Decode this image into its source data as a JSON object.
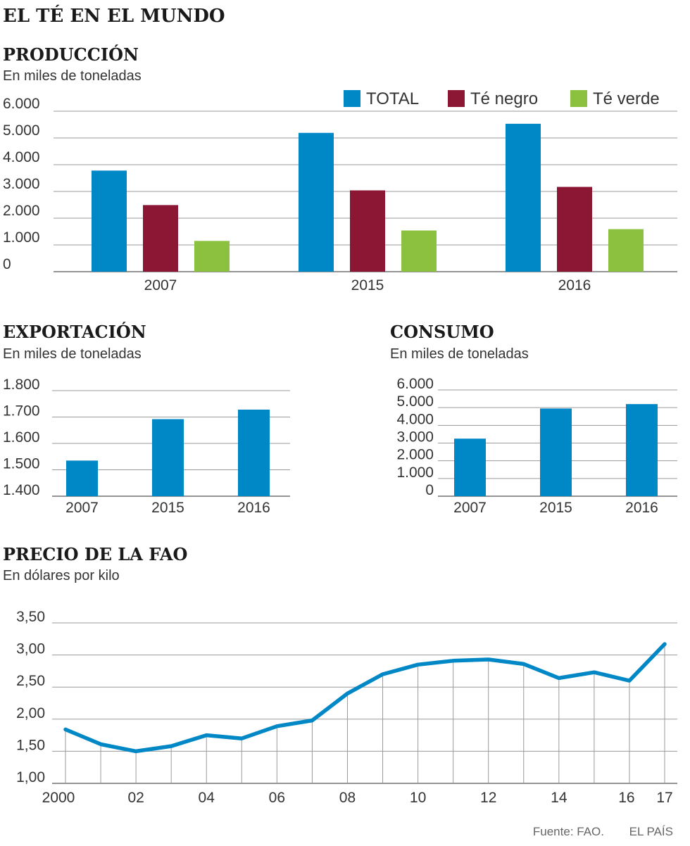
{
  "page_title": "EL TÉ EN EL MUNDO",
  "colors": {
    "total": "#0087c6",
    "negro": "#8b1734",
    "verde": "#8cc13f",
    "line": "#0087c6"
  },
  "chart_data": [
    {
      "type": "bar",
      "title": "PRODUCCIÓN",
      "subtitle": "En miles de toneladas",
      "categories": [
        "2007",
        "2015",
        "2016"
      ],
      "series": [
        {
          "name": "TOTAL",
          "values": [
            3780,
            5190,
            5530
          ]
        },
        {
          "name": "Té negro",
          "values": [
            2490,
            3040,
            3170
          ]
        },
        {
          "name": "Té verde",
          "values": [
            1150,
            1540,
            1590
          ]
        }
      ],
      "ylim": [
        0,
        6000
      ],
      "yticks": [
        0,
        1000,
        2000,
        3000,
        4000,
        5000,
        6000
      ],
      "ytick_labels": [
        "0",
        "1.000",
        "2.000",
        "3.000",
        "4.000",
        "5.000",
        "6.000"
      ],
      "legend_position": "top-right"
    },
    {
      "type": "bar",
      "title": "EXPORTACIÓN",
      "subtitle": "En miles de toneladas",
      "categories": [
        "2007",
        "2015",
        "2016"
      ],
      "values": [
        1535,
        1692,
        1728
      ],
      "ylim": [
        1400,
        1800
      ],
      "yticks": [
        1400,
        1500,
        1600,
        1700,
        1800
      ],
      "ytick_labels": [
        "1.400",
        "1.500",
        "1.600",
        "1.700",
        "1.800"
      ]
    },
    {
      "type": "bar",
      "title": "CONSUMO",
      "subtitle": "En miles de toneladas",
      "categories": [
        "2007",
        "2015",
        "2016"
      ],
      "values": [
        3250,
        4950,
        5200
      ],
      "ylim": [
        0,
        6000
      ],
      "yticks": [
        0,
        1000,
        2000,
        3000,
        4000,
        5000,
        6000
      ],
      "ytick_labels": [
        "0",
        "1.000",
        "2.000",
        "3.000",
        "4.000",
        "5.000",
        "6.000"
      ]
    },
    {
      "type": "line",
      "title": "PRECIO DE LA FAO",
      "subtitle": "En dólares por kilo",
      "x": [
        2000,
        2001,
        2002,
        2003,
        2004,
        2005,
        2006,
        2007,
        2008,
        2009,
        2010,
        2011,
        2012,
        2013,
        2014,
        2015,
        2016,
        2017
      ],
      "values": [
        1.84,
        1.61,
        1.5,
        1.58,
        1.75,
        1.7,
        1.89,
        1.98,
        2.4,
        2.7,
        2.85,
        2.91,
        2.93,
        2.86,
        2.64,
        2.73,
        2.6,
        3.17
      ],
      "ylim": [
        1.0,
        3.5
      ],
      "yticks": [
        1.0,
        1.5,
        2.0,
        2.5,
        3.0,
        3.5
      ],
      "ytick_labels": [
        "1,00",
        "1,50",
        "2,00",
        "2,50",
        "3,00",
        "3,50"
      ],
      "xtick_labels": [
        "2000",
        "02",
        "04",
        "06",
        "08",
        "10",
        "12",
        "14",
        "16",
        "17"
      ],
      "xtick_years": [
        2000,
        2002,
        2004,
        2006,
        2008,
        2010,
        2012,
        2014,
        2016,
        2017
      ]
    }
  ],
  "footer": {
    "source": "Fuente: FAO.",
    "credit": "EL PAÍS"
  }
}
